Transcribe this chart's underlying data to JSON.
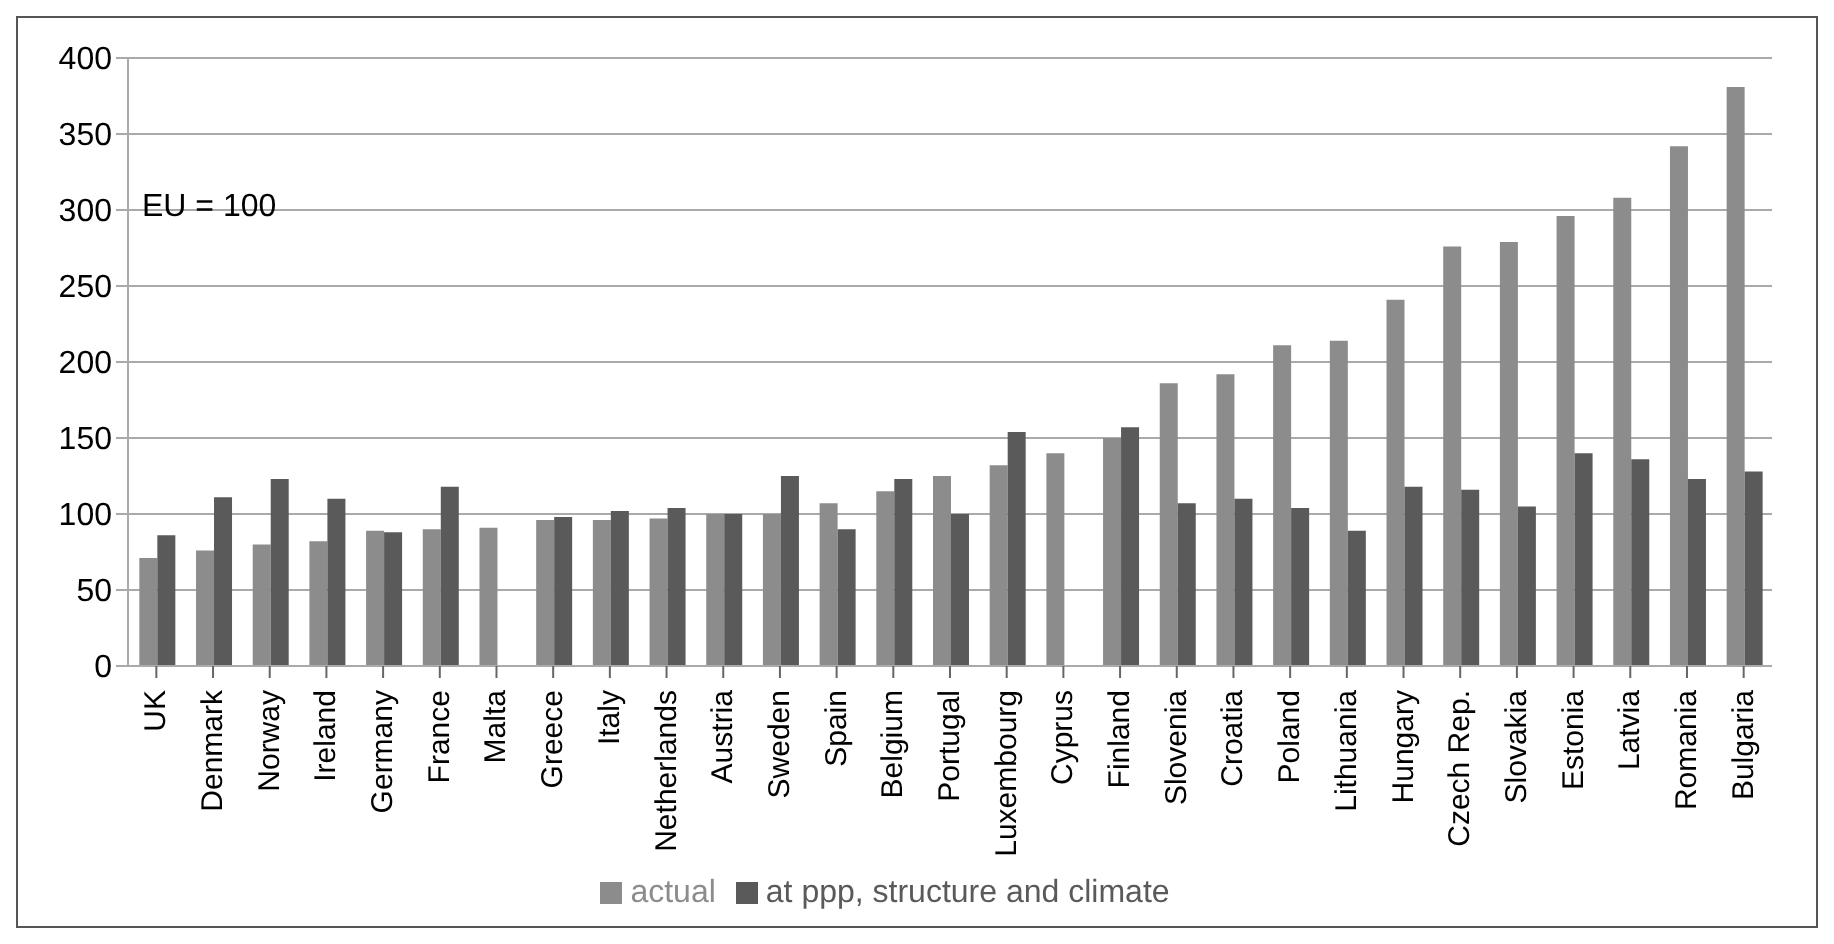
{
  "chart_data": {
    "type": "bar",
    "categories": [
      "UK",
      "Denmark",
      "Norway",
      "Ireland",
      "Germany",
      "France",
      "Malta",
      "Greece",
      "Italy",
      "Netherlands",
      "Austria",
      "Sweden",
      "Spain",
      "Belgium",
      "Portugal",
      "Luxembourg",
      "Cyprus",
      "Finland",
      "Slovenia",
      "Croatia",
      "Poland",
      "Lithuania",
      "Hungary",
      "Czech Rep.",
      "Slovakia",
      "Estonia",
      "Latvia",
      "Romania",
      "Bulgaria"
    ],
    "series": [
      {
        "name": "actual",
        "color": "#8c8c8c",
        "values": [
          71,
          76,
          80,
          82,
          89,
          90,
          91,
          96,
          96,
          97,
          100,
          100,
          107,
          115,
          125,
          132,
          140,
          150,
          186,
          192,
          211,
          214,
          241,
          276,
          279,
          296,
          308,
          342,
          381
        ]
      },
      {
        "name": "at ppp, structure and climate",
        "color": "#5a5a5a",
        "values": [
          86,
          111,
          123,
          110,
          88,
          118,
          null,
          98,
          102,
          104,
          100,
          125,
          90,
          123,
          100,
          154,
          null,
          157,
          107,
          110,
          104,
          89,
          118,
          116,
          105,
          140,
          136,
          123,
          128
        ]
      }
    ],
    "ylim": [
      0,
      400
    ],
    "yticks": [
      0,
      50,
      100,
      150,
      200,
      250,
      300,
      350,
      400
    ],
    "grid": "y",
    "legend": "bottom",
    "annotations": [
      "EU = 100"
    ]
  }
}
